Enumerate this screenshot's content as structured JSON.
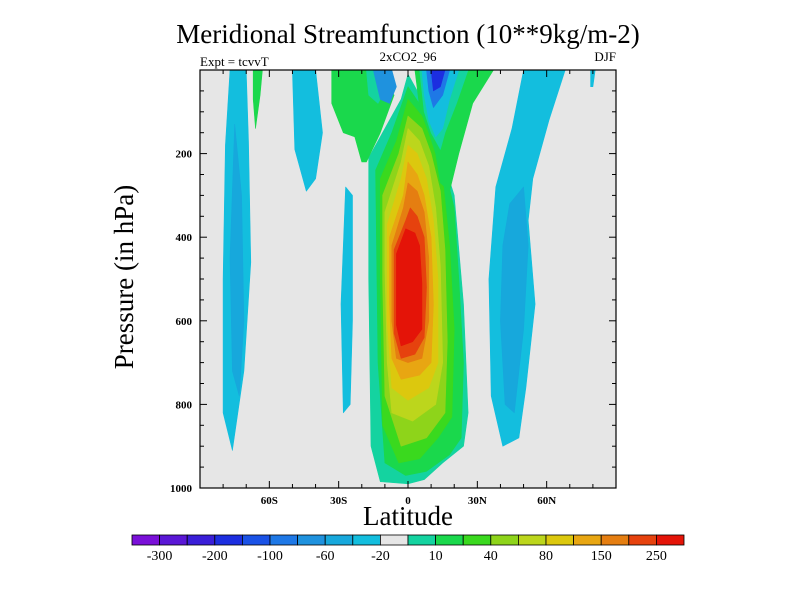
{
  "chart_data": {
    "type": "contour",
    "title": "Meridional Streamfunction (10**9kg/m-2)",
    "subtitle": "2xCO2_96",
    "left_label": "Expt = tcvvT",
    "right_label": "DJF",
    "xlabel": "Latitude",
    "ylabel": "Pressure (in hPa)",
    "xlim": [
      -90,
      90
    ],
    "ylim": [
      0,
      1000
    ],
    "y_reversed": true,
    "x_ticks": [
      {
        "value": -60,
        "label": "60S"
      },
      {
        "value": -30,
        "label": "30S"
      },
      {
        "value": 0,
        "label": "0"
      },
      {
        "value": 30,
        "label": "30N"
      },
      {
        "value": 60,
        "label": "60N"
      }
    ],
    "y_ticks": [
      {
        "value": 200,
        "label": "200"
      },
      {
        "value": 400,
        "label": "400"
      },
      {
        "value": 600,
        "label": "600"
      },
      {
        "value": 800,
        "label": "800"
      },
      {
        "value": 1000,
        "label": "1000"
      }
    ],
    "background_color": "#e6e6e6",
    "levels": [
      -300,
      -250,
      -200,
      -150,
      -100,
      -80,
      -60,
      -40,
      -20,
      -10,
      10,
      20,
      40,
      60,
      80,
      100,
      150,
      200,
      250,
      300
    ],
    "colorbar_colors": [
      "#7a10d8",
      "#5a17d6",
      "#3a1ed8",
      "#1c2ee0",
      "#1a52e6",
      "#1e78e6",
      "#1f92de",
      "#17a8dc",
      "#13bede",
      "#e6e6e6",
      "#14d3a0",
      "#1ad84c",
      "#3ad91e",
      "#8ed41a",
      "#bcd61c",
      "#dcc80e",
      "#e8a612",
      "#e57e11",
      "#e6420e",
      "#e41408"
    ],
    "colorbar_labels": [
      {
        "label": "-300",
        "index": 1
      },
      {
        "label": "-200",
        "index": 3
      },
      {
        "label": "-100",
        "index": 5
      },
      {
        "label": "-60",
        "index": 7
      },
      {
        "label": "-20",
        "index": 9
      },
      {
        "label": "10",
        "index": 11
      },
      {
        "label": "40",
        "index": 13
      },
      {
        "label": "80",
        "index": 15
      },
      {
        "label": "150",
        "index": 17
      },
      {
        "label": "250",
        "index": 19
      }
    ],
    "regions": [
      {
        "name": "south-polar-cell",
        "value": -20,
        "color": "#13bede",
        "points": [
          [
            -77,
            0
          ],
          [
            -70,
            0
          ],
          [
            -69,
            170
          ],
          [
            -68,
            460
          ],
          [
            -71,
            720
          ],
          [
            -76,
            910
          ],
          [
            -80,
            820
          ],
          [
            -80,
            500
          ],
          [
            -79,
            180
          ]
        ]
      },
      {
        "name": "south-polar-core",
        "value": -40,
        "color": "#17a8dc",
        "points": [
          [
            -75,
            130
          ],
          [
            -72,
            300
          ],
          [
            -71,
            600
          ],
          [
            -73,
            780
          ],
          [
            -76,
            720
          ],
          [
            -77,
            450
          ]
        ]
      },
      {
        "name": "south-midlat-upper-cell",
        "value": -20,
        "color": "#13bede",
        "points": [
          [
            -50,
            0
          ],
          [
            -40,
            0
          ],
          [
            -37,
            150
          ],
          [
            -40,
            260
          ],
          [
            -44,
            290
          ],
          [
            -49,
            190
          ]
        ]
      },
      {
        "name": "south-midlat-lower-cell",
        "value": -20,
        "color": "#13bede",
        "points": [
          [
            -27,
            280
          ],
          [
            -24,
            300
          ],
          [
            -24,
            600
          ],
          [
            -25,
            800
          ],
          [
            -28,
            820
          ],
          [
            -29,
            560
          ]
        ]
      },
      {
        "name": "positive-cell-outer",
        "value": 10,
        "color": "#14d3a0",
        "points": [
          [
            -17,
            210
          ],
          [
            -10,
            140
          ],
          [
            -3,
            70
          ],
          [
            0,
            10
          ],
          [
            5,
            60
          ],
          [
            11,
            110
          ],
          [
            16,
            230
          ],
          [
            20,
            300
          ],
          [
            24,
            560
          ],
          [
            26,
            820
          ],
          [
            24,
            900
          ],
          [
            15,
            940
          ],
          [
            7,
            980
          ],
          [
            0,
            990
          ],
          [
            -12,
            985
          ],
          [
            -16,
            900
          ],
          [
            -17,
            500
          ]
        ]
      },
      {
        "name": "positive-cell-20",
        "value": 20,
        "color": "#1ad84c",
        "points": [
          [
            -14,
            240
          ],
          [
            -7,
            150
          ],
          [
            0,
            40
          ],
          [
            6,
            90
          ],
          [
            12,
            150
          ],
          [
            17,
            260
          ],
          [
            20,
            330
          ],
          [
            22,
            500
          ],
          [
            24,
            700
          ],
          [
            23,
            880
          ],
          [
            18,
            920
          ],
          [
            8,
            960
          ],
          [
            -1,
            970
          ],
          [
            -10,
            940
          ],
          [
            -13,
            700
          ]
        ]
      },
      {
        "name": "positive-cell-40",
        "value": 40,
        "color": "#3ad91e",
        "points": [
          [
            -12,
            260
          ],
          [
            -5,
            170
          ],
          [
            0,
            70
          ],
          [
            6,
            110
          ],
          [
            11,
            160
          ],
          [
            15,
            260
          ],
          [
            18,
            420
          ],
          [
            20,
            620
          ],
          [
            19,
            830
          ],
          [
            13,
            880
          ],
          [
            5,
            930
          ],
          [
            -4,
            940
          ],
          [
            -11,
            850
          ],
          [
            -12,
            500
          ]
        ]
      },
      {
        "name": "positive-cell-60",
        "value": 60,
        "color": "#8ed41a",
        "points": [
          [
            -11,
            300
          ],
          [
            -4,
            200
          ],
          [
            0,
            110
          ],
          [
            6,
            140
          ],
          [
            10,
            200
          ],
          [
            14,
            290
          ],
          [
            16,
            430
          ],
          [
            17,
            650
          ],
          [
            16,
            820
          ],
          [
            8,
            880
          ],
          [
            -3,
            900
          ],
          [
            -10,
            780
          ],
          [
            -11,
            500
          ]
        ]
      },
      {
        "name": "positive-cell-80",
        "value": 80,
        "color": "#bcd61c",
        "points": [
          [
            -10,
            340
          ],
          [
            -3,
            220
          ],
          [
            0,
            140
          ],
          [
            5,
            170
          ],
          [
            9,
            230
          ],
          [
            12,
            330
          ],
          [
            14,
            470
          ],
          [
            15,
            700
          ],
          [
            12,
            800
          ],
          [
            2,
            840
          ],
          [
            -7,
            820
          ],
          [
            -9,
            700
          ],
          [
            -10,
            480
          ]
        ]
      },
      {
        "name": "positive-cell-100",
        "value": 100,
        "color": "#dcc80e",
        "points": [
          [
            -9,
            370
          ],
          [
            -3,
            260
          ],
          [
            0,
            180
          ],
          [
            4,
            200
          ],
          [
            8,
            260
          ],
          [
            11,
            360
          ],
          [
            13,
            500
          ],
          [
            13,
            700
          ],
          [
            9,
            760
          ],
          [
            0,
            790
          ],
          [
            -7,
            760
          ],
          [
            -9,
            600
          ]
        ]
      },
      {
        "name": "positive-cell-150",
        "value": 150,
        "color": "#e8a612",
        "points": [
          [
            -8,
            400
          ],
          [
            -2,
            300
          ],
          [
            0,
            220
          ],
          [
            4,
            250
          ],
          [
            7,
            300
          ],
          [
            10,
            400
          ],
          [
            11,
            560
          ],
          [
            10,
            700
          ],
          [
            5,
            730
          ],
          [
            -3,
            740
          ],
          [
            -7,
            690
          ],
          [
            -8,
            560
          ]
        ]
      },
      {
        "name": "positive-cell-200",
        "value": 200,
        "color": "#e57e11",
        "points": [
          [
            -7,
            420
          ],
          [
            -2,
            330
          ],
          [
            0,
            270
          ],
          [
            4,
            290
          ],
          [
            7,
            340
          ],
          [
            9,
            450
          ],
          [
            9,
            600
          ],
          [
            6,
            690
          ],
          [
            0,
            700
          ],
          [
            -5,
            690
          ],
          [
            -7,
            600
          ]
        ]
      },
      {
        "name": "positive-cell-250",
        "value": 250,
        "color": "#e6420e",
        "points": [
          [
            -6,
            430
          ],
          [
            -1,
            360
          ],
          [
            1,
            330
          ],
          [
            4,
            350
          ],
          [
            7,
            400
          ],
          [
            8,
            520
          ],
          [
            7,
            640
          ],
          [
            3,
            680
          ],
          [
            -3,
            690
          ],
          [
            -6,
            630
          ]
        ]
      },
      {
        "name": "positive-cell-core",
        "value": 300,
        "color": "#e41408",
        "points": [
          [
            -5,
            440
          ],
          [
            -1,
            380
          ],
          [
            3,
            390
          ],
          [
            5,
            420
          ],
          [
            6,
            510
          ],
          [
            6,
            620
          ],
          [
            2,
            650
          ],
          [
            -3,
            660
          ],
          [
            -5,
            610
          ]
        ]
      },
      {
        "name": "equatorial-upper-left-green",
        "value": 20,
        "color": "#1ad84c",
        "points": [
          [
            -33,
            0
          ],
          [
            -13,
            0
          ],
          [
            -6,
            60
          ],
          [
            -12,
            150
          ],
          [
            -18,
            220
          ],
          [
            -20,
            220
          ],
          [
            -23,
            160
          ],
          [
            -28,
            150
          ],
          [
            -33,
            80
          ]
        ]
      },
      {
        "name": "equatorial-upper-left-teal",
        "value": 10,
        "color": "#14d3a0",
        "points": [
          [
            -18,
            0
          ],
          [
            -12,
            0
          ],
          [
            -9,
            40
          ],
          [
            -13,
            80
          ],
          [
            -17,
            60
          ]
        ]
      },
      {
        "name": "equatorial-upper-blue-left",
        "value": -40,
        "color": "#1f92de",
        "points": [
          [
            -15,
            0
          ],
          [
            -7,
            0
          ],
          [
            -5,
            40
          ],
          [
            -8,
            80
          ],
          [
            -12,
            70
          ]
        ]
      },
      {
        "name": "equatorial-upper-green-right",
        "value": 20,
        "color": "#1ad84c",
        "points": [
          [
            3,
            0
          ],
          [
            37,
            0
          ],
          [
            28,
            80
          ],
          [
            22,
            200
          ],
          [
            18,
            290
          ],
          [
            14,
            270
          ],
          [
            12,
            200
          ],
          [
            9,
            150
          ],
          [
            5,
            90
          ]
        ]
      },
      {
        "name": "equatorial-upper-teal-right",
        "value": 10,
        "color": "#14d3a0",
        "points": [
          [
            5,
            0
          ],
          [
            26,
            0
          ],
          [
            21,
            80
          ],
          [
            16,
            150
          ],
          [
            14,
            190
          ],
          [
            10,
            150
          ],
          [
            7,
            100
          ]
        ]
      },
      {
        "name": "equatorial-upper-blue-right",
        "value": -20,
        "color": "#13bede",
        "points": [
          [
            6,
            0
          ],
          [
            22,
            0
          ],
          [
            18,
            70
          ],
          [
            15,
            140
          ],
          [
            12,
            160
          ],
          [
            9,
            120
          ],
          [
            7,
            60
          ]
        ]
      },
      {
        "name": "equatorial-upper-blue-right-core",
        "value": -60,
        "color": "#1e78e6",
        "points": [
          [
            8,
            0
          ],
          [
            18,
            0
          ],
          [
            15,
            60
          ],
          [
            11,
            90
          ],
          [
            9,
            50
          ]
        ]
      },
      {
        "name": "equatorial-upper-blue-right-deep",
        "value": -100,
        "color": "#1c2ee0",
        "points": [
          [
            10,
            0
          ],
          [
            16,
            0
          ],
          [
            14,
            40
          ],
          [
            11,
            50
          ]
        ]
      },
      {
        "name": "north-midlat-cell",
        "value": -20,
        "color": "#13bede",
        "points": [
          [
            50,
            0
          ],
          [
            68,
            0
          ],
          [
            61,
            120
          ],
          [
            54,
            260
          ],
          [
            52,
            360
          ],
          [
            55,
            560
          ],
          [
            51,
            760
          ],
          [
            48,
            880
          ],
          [
            41,
            900
          ],
          [
            36,
            780
          ],
          [
            35,
            500
          ],
          [
            38,
            280
          ],
          [
            45,
            140
          ]
        ]
      },
      {
        "name": "north-midlat-core",
        "value": -40,
        "color": "#17a8dc",
        "points": [
          [
            44,
            320
          ],
          [
            50,
            280
          ],
          [
            52,
            420
          ],
          [
            50,
            620
          ],
          [
            46,
            820
          ],
          [
            42,
            800
          ],
          [
            40,
            600
          ],
          [
            41,
            420
          ]
        ]
      },
      {
        "name": "north-polar-sliver",
        "value": -20,
        "color": "#13bede",
        "points": [
          [
            79,
            0
          ],
          [
            81,
            0
          ],
          [
            80,
            40
          ],
          [
            79,
            40
          ]
        ]
      },
      {
        "name": "south-green-sliver",
        "value": 20,
        "color": "#1ad84c",
        "points": [
          [
            -67,
            0
          ],
          [
            -63,
            0
          ],
          [
            -64,
            60
          ],
          [
            -66,
            140
          ],
          [
            -67,
            70
          ]
        ]
      }
    ]
  }
}
